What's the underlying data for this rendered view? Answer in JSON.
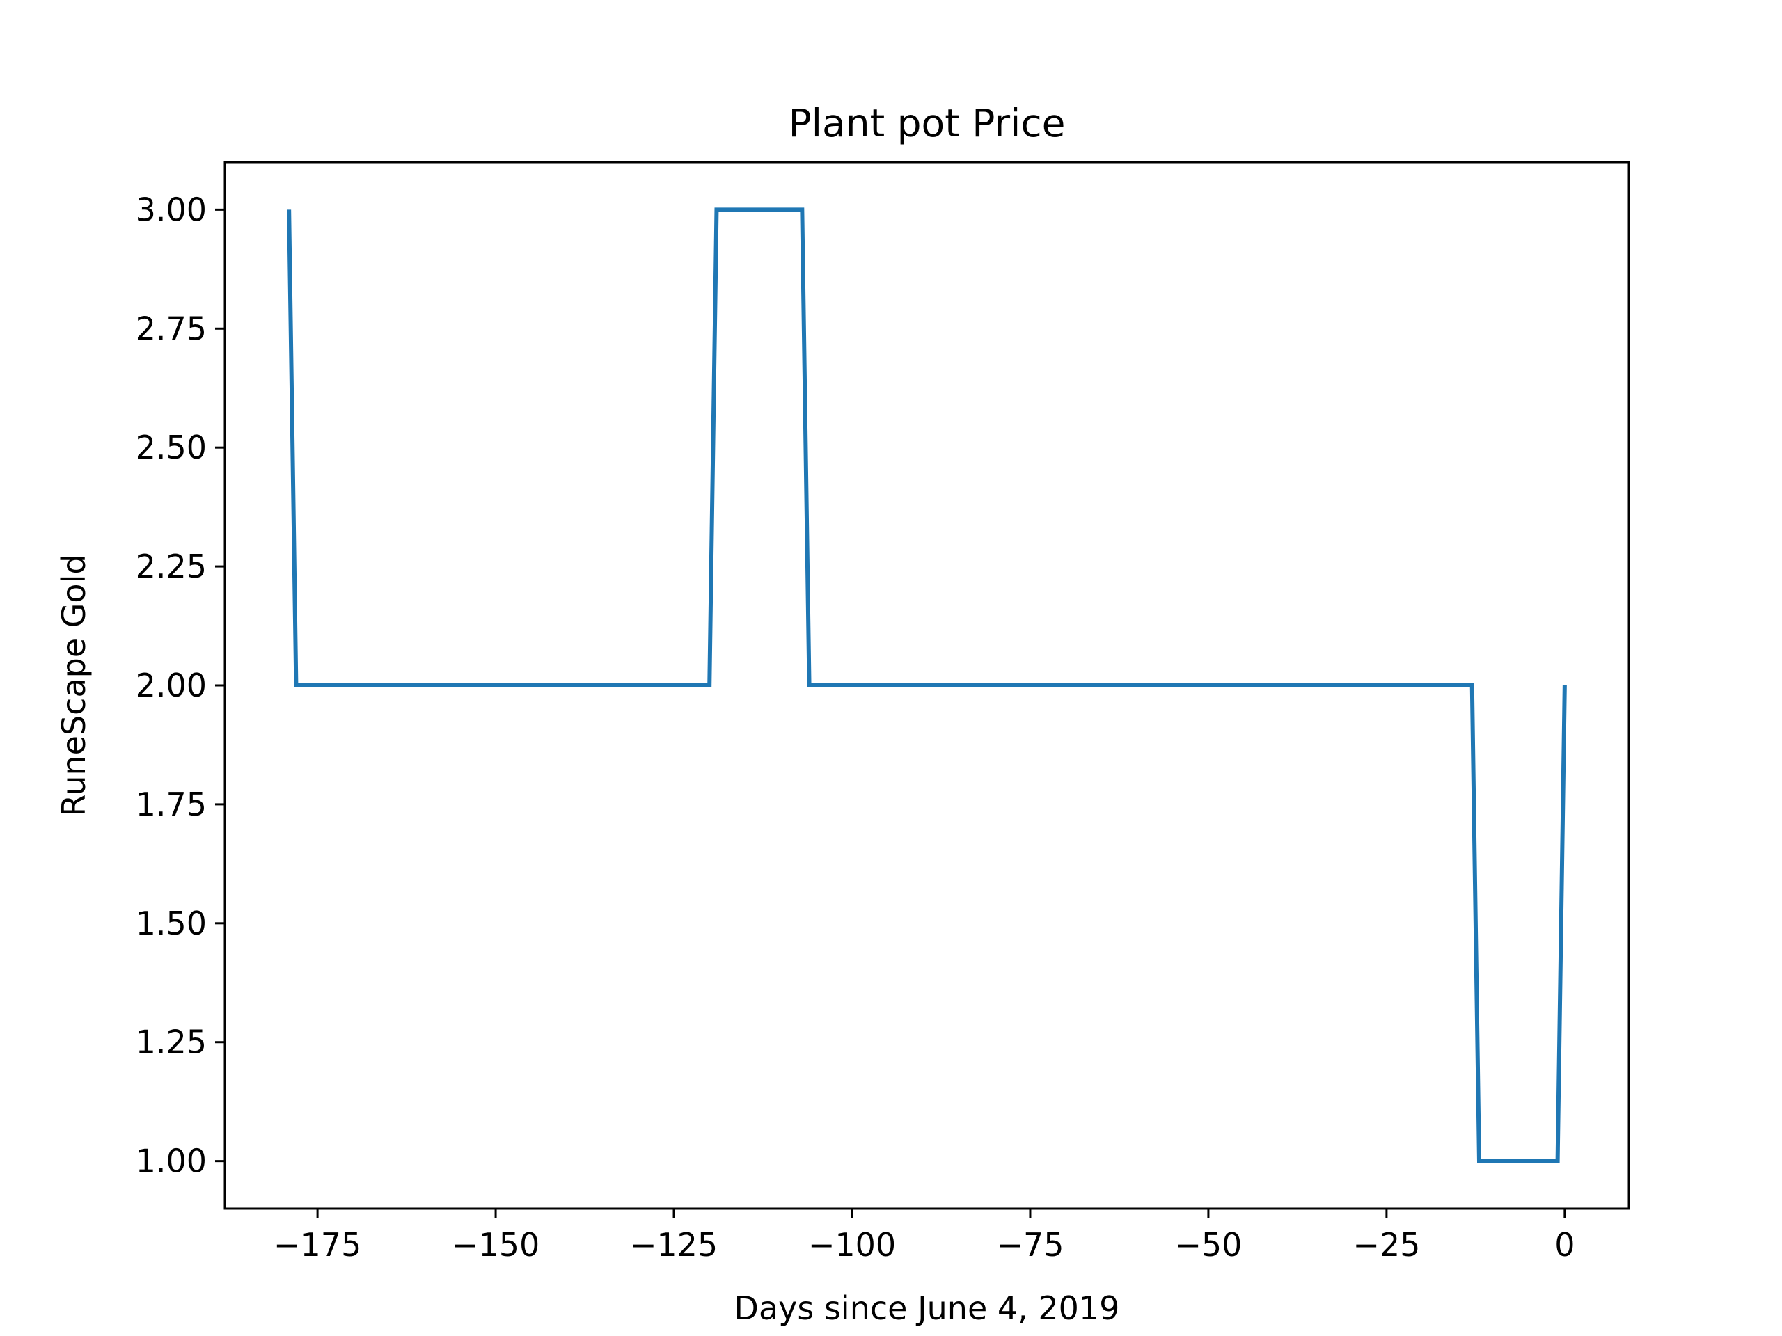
{
  "chart_data": {
    "type": "line",
    "title": "Plant pot Price",
    "xlabel": "Days since June 4, 2019",
    "ylabel": "RuneScape Gold",
    "xlim": [
      -188,
      9
    ],
    "ylim": [
      0.9,
      3.1
    ],
    "xticks": [
      -175,
      -150,
      -125,
      -100,
      -75,
      -50,
      -25,
      0
    ],
    "xtick_labels": [
      "−175",
      "−150",
      "−125",
      "−100",
      "−75",
      "−50",
      "−25",
      "0"
    ],
    "yticks": [
      1.0,
      1.25,
      1.5,
      1.75,
      2.0,
      2.25,
      2.5,
      2.75,
      3.0
    ],
    "ytick_labels": [
      "1.00",
      "1.25",
      "1.50",
      "1.75",
      "2.00",
      "2.25",
      "2.50",
      "2.75",
      "3.00"
    ],
    "grid": false,
    "legend": false,
    "series": [
      {
        "color": "#1f77b4",
        "x": [
          -179,
          -178,
          -120,
          -119,
          -107,
          -106,
          -13,
          -12,
          -1,
          0
        ],
        "y": [
          3.0,
          2.0,
          2.0,
          3.0,
          3.0,
          2.0,
          2.0,
          1.0,
          1.0,
          2.0
        ]
      }
    ]
  }
}
